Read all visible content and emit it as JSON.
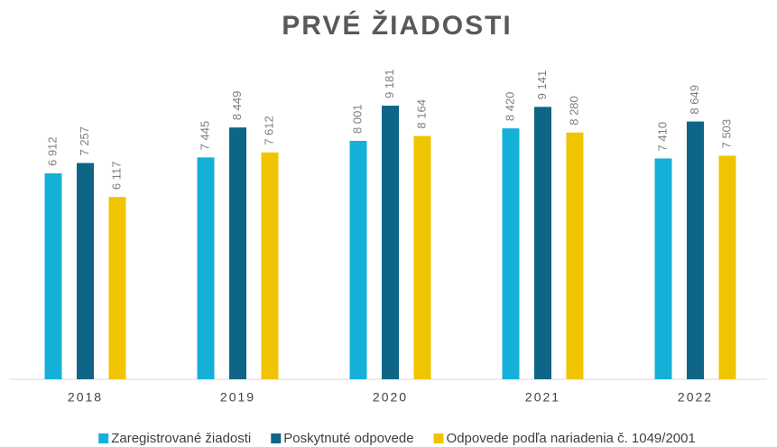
{
  "chart_data": {
    "type": "bar",
    "title": "PRVÉ ŽIADOSTI",
    "categories": [
      "2018",
      "2019",
      "2020",
      "2021",
      "2022"
    ],
    "ylim": [
      0,
      10000
    ],
    "series": [
      {
        "name": "Zaregistrované žiadosti",
        "color": "#14b0d8",
        "values": [
          6912,
          7445,
          8001,
          8420,
          7410
        ],
        "value_labels": [
          "6 912",
          "7 445",
          "8 001",
          "8 420",
          "7 410"
        ]
      },
      {
        "name": "Poskytnuté odpovede",
        "color": "#0e6586",
        "values": [
          7257,
          8449,
          9181,
          9141,
          8649
        ],
        "value_labels": [
          "7 257",
          "8 449",
          "9 181",
          "9 141",
          "8 649"
        ]
      },
      {
        "name": "Odpovede podľa nariadenia č. 1049/2001",
        "color": "#f0c400",
        "values": [
          6117,
          7612,
          8164,
          8280,
          7503
        ],
        "value_labels": [
          "6 117",
          "7 612",
          "8 164",
          "8 280",
          "7 503"
        ]
      }
    ]
  }
}
